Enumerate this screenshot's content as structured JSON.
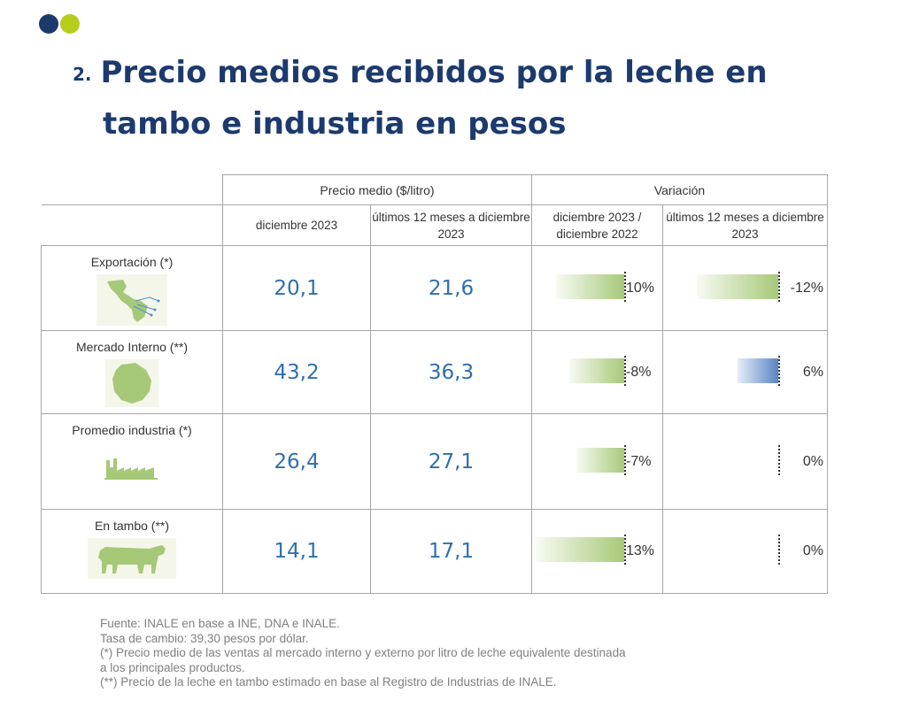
{
  "slide": {
    "number": "2.",
    "title_line1": "Precio medios recibidos por la leche en",
    "title_line2": "tambo e industria en pesos"
  },
  "colors": {
    "navy": "#1c3a6e",
    "lime": "#b8cc1c",
    "value_blue": "#2e6fae",
    "bar_green": "#a6c978",
    "bar_blue": "#5a83c4"
  },
  "table": {
    "group_headers": [
      "Precio medio ($/litro)",
      "Variación"
    ],
    "sub_headers": [
      "diciembre 2023",
      "últimos 12 meses a diciembre 2023",
      "diciembre 2023 / diciembre 2022",
      "últimos 12 meses a diciembre 2023"
    ],
    "rows": [
      {
        "label": "Exportación (*)",
        "icon": "americas-map-icon",
        "dec2023": "20,1",
        "last12": "21,6",
        "var_dec": {
          "text": "10%",
          "value": 10
        },
        "var_12": {
          "text": "-12%",
          "value": -12
        }
      },
      {
        "label": "Mercado Interno (**)",
        "icon": "uruguay-map-icon",
        "dec2023": "43,2",
        "last12": "36,3",
        "var_dec": {
          "text": "-8%",
          "value": -8
        },
        "var_12": {
          "text": "6%",
          "value": 6
        }
      },
      {
        "label": "Promedio industria (*)",
        "icon": "factory-icon",
        "dec2023": "26,4",
        "last12": "27,1",
        "var_dec": {
          "text": "-7%",
          "value": -7
        },
        "var_12": {
          "text": "0%",
          "value": 0
        }
      },
      {
        "label": "En tambo (**)",
        "icon": "cow-icon",
        "dec2023": "14,1",
        "last12": "17,1",
        "var_dec": {
          "text": "13%",
          "value": 13
        },
        "var_12": {
          "text": "0%",
          "value": 0
        }
      }
    ]
  },
  "footnotes": [
    "Fuente: INALE en base a INE, DNA e INALE.",
    "Tasa de cambio: 39,30 pesos por dólar.",
    "(*) Precio medio de las ventas al mercado interno y externo por litro de leche equivalente destinada",
    "a los principales productos.",
    "(**) Precio de la leche en tambo estimado en base al Registro de Industrias de INALE."
  ]
}
